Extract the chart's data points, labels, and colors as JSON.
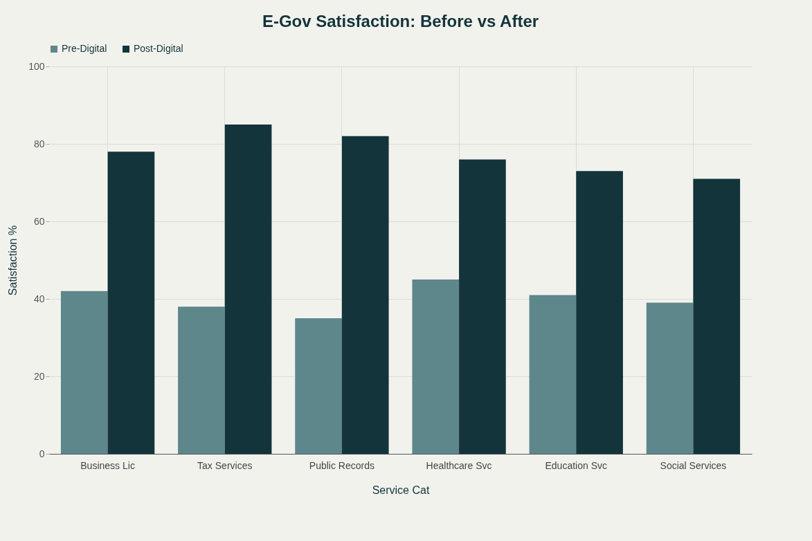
{
  "chart_data": {
    "type": "bar",
    "title": "E-Gov Satisfaction: Before vs After",
    "xlabel": "Service Cat",
    "ylabel": "Satisfaction %",
    "categories": [
      "Business Lic",
      "Tax Services",
      "Public Records",
      "Healthcare Svc",
      "Education Svc",
      "Social Services"
    ],
    "series": [
      {
        "name": "Pre-Digital",
        "color": "#5e878c",
        "values": [
          42,
          38,
          35,
          45,
          41,
          39
        ]
      },
      {
        "name": "Post-Digital",
        "color": "#13343b",
        "values": [
          78,
          85,
          82,
          76,
          73,
          71
        ]
      }
    ],
    "ylim": [
      0,
      100
    ],
    "yticks": [
      0,
      20,
      40,
      60,
      80,
      100
    ],
    "grid": true,
    "legend": "top"
  }
}
